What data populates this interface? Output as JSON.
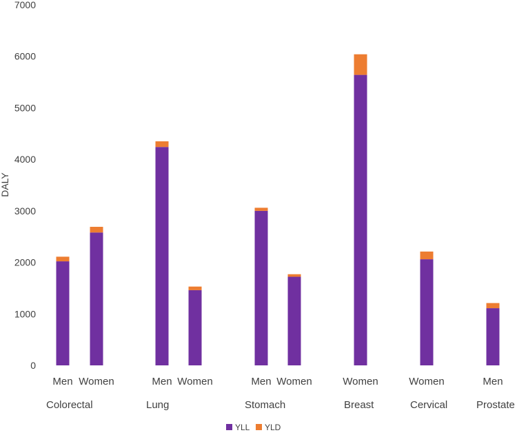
{
  "chart_data": {
    "type": "bar",
    "stacked": true,
    "ylabel": "DALY",
    "ylim": [
      0,
      7000
    ],
    "yticks": [
      0,
      1000,
      2000,
      3000,
      4000,
      5000,
      6000,
      7000
    ],
    "grid": false,
    "legend_position": "bottom",
    "groups": [
      {
        "name": "Colorectal",
        "categories": [
          "Men",
          "Women"
        ]
      },
      {
        "name": "Lung",
        "categories": [
          "Men",
          "Women"
        ]
      },
      {
        "name": "Stomach",
        "categories": [
          "Men",
          "Women"
        ]
      },
      {
        "name": "Breast",
        "categories": [
          "Women"
        ]
      },
      {
        "name": "Cervical",
        "categories": [
          "Women"
        ]
      },
      {
        "name": "Prostate",
        "categories": [
          "Men"
        ]
      }
    ],
    "categories": [
      "Men",
      "Women",
      "Men",
      "Women",
      "Men",
      "Women",
      "Women",
      "Women",
      "Men"
    ],
    "series": [
      {
        "name": "YLL",
        "color": "#7030A0",
        "values": [
          2020,
          2580,
          4240,
          1460,
          3000,
          1720,
          5640,
          2060,
          1110
        ]
      },
      {
        "name": "YLD",
        "color": "#ED7D31",
        "values": [
          90,
          110,
          110,
          70,
          60,
          50,
          400,
          150,
          100
        ]
      }
    ]
  }
}
